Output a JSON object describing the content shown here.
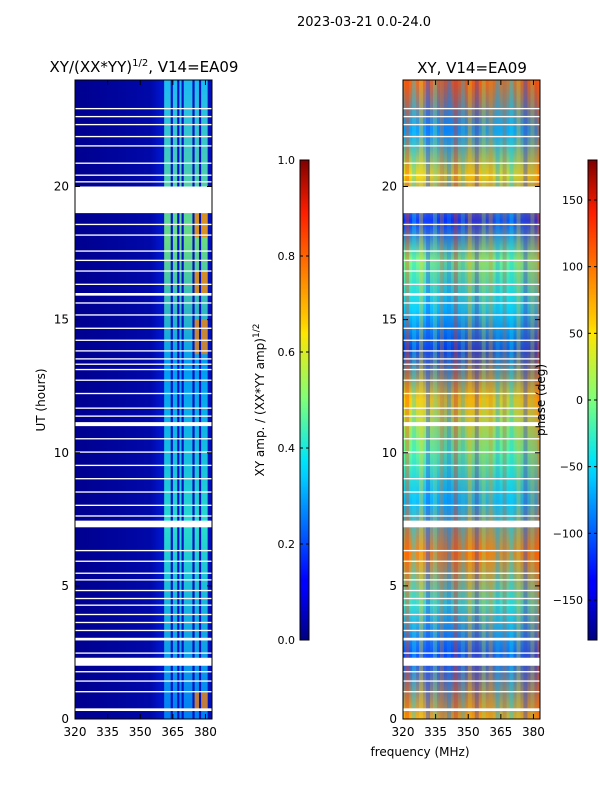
{
  "figure_title": "2023-03-21 0.0-24.0",
  "chart_data": [
    {
      "type": "heatmap",
      "title": "XY/(XX*YY)$^{1/2}$, V14=EA09",
      "title_main": "XY/(XX*YY)",
      "title_sup": "1/2",
      "title_tail": ", V14=EA09",
      "xlabel": "",
      "ylabel": "UT (hours)",
      "xlim": [
        320,
        383
      ],
      "ylim": [
        0,
        24
      ],
      "xticks": [
        "320",
        "335",
        "350",
        "365",
        "380"
      ],
      "xtick_values": [
        320,
        335,
        350,
        365,
        380
      ],
      "yticks": [
        "0",
        "5",
        "10",
        "15",
        "20"
      ],
      "ytick_values": [
        0,
        5,
        10,
        15,
        20
      ],
      "colorbar": {
        "label": "XY amp. / (XX*YY amp)$^{1/2}$",
        "label_main": "XY amp. / (XX*YY amp)",
        "label_sup": "1/2",
        "range": [
          0.0,
          1.0
        ],
        "ticks": [
          "0.0",
          "0.2",
          "0.4",
          "0.6",
          "0.8",
          "1.0"
        ],
        "tick_values": [
          0.0,
          0.2,
          0.4,
          0.6,
          0.8,
          1.0
        ]
      }
    },
    {
      "type": "heatmap",
      "title": "XY, V14=EA09",
      "xlabel": "frequency (MHz)",
      "ylabel": "",
      "xlim": [
        320,
        383
      ],
      "ylim": [
        0,
        24
      ],
      "xticks": [
        "320",
        "335",
        "350",
        "365",
        "380"
      ],
      "xtick_values": [
        320,
        335,
        350,
        365,
        380
      ],
      "yticks": [
        "0",
        "5",
        "10",
        "15",
        "20"
      ],
      "ytick_values": [
        0,
        5,
        10,
        15,
        20
      ],
      "colorbar": {
        "label": "phase (deg)",
        "range": [
          -180,
          180
        ],
        "ticks": [
          "−150",
          "−100",
          "−50",
          "0",
          "50",
          "100",
          "150"
        ],
        "tick_values": [
          -150,
          -100,
          -50,
          0,
          50,
          100,
          150
        ]
      }
    }
  ],
  "flagged_hours": [
    [
      19.0,
      20.0
    ],
    [
      0.3,
      0.4
    ],
    [
      1.0,
      1.05
    ],
    [
      1.4,
      1.45
    ],
    [
      1.75,
      1.8
    ],
    [
      2.0,
      2.3
    ],
    [
      2.45,
      2.5
    ],
    [
      2.95,
      3.05
    ],
    [
      3.3,
      3.35
    ],
    [
      3.6,
      3.65
    ],
    [
      3.9,
      3.95
    ],
    [
      4.25,
      4.3
    ],
    [
      4.5,
      4.55
    ],
    [
      4.8,
      4.85
    ],
    [
      5.2,
      5.25
    ],
    [
      5.45,
      5.5
    ],
    [
      5.9,
      5.95
    ],
    [
      6.3,
      6.35
    ],
    [
      7.2,
      7.45
    ],
    [
      7.6,
      7.65
    ],
    [
      8.0,
      8.05
    ],
    [
      8.5,
      8.55
    ],
    [
      9.0,
      9.05
    ],
    [
      9.5,
      9.55
    ],
    [
      10.0,
      10.05
    ],
    [
      10.5,
      10.55
    ],
    [
      11.0,
      11.15
    ],
    [
      11.35,
      11.4
    ],
    [
      11.65,
      11.7
    ],
    [
      12.2,
      12.25
    ],
    [
      12.7,
      12.75
    ],
    [
      13.1,
      13.15
    ],
    [
      13.3,
      13.35
    ],
    [
      13.5,
      13.55
    ],
    [
      13.8,
      13.85
    ],
    [
      14.2,
      14.25
    ],
    [
      14.65,
      14.7
    ],
    [
      15.15,
      15.2
    ],
    [
      15.6,
      15.65
    ],
    [
      15.9,
      16.0
    ],
    [
      16.3,
      16.35
    ],
    [
      16.8,
      16.85
    ],
    [
      17.2,
      17.25
    ],
    [
      17.55,
      17.6
    ],
    [
      18.15,
      18.2
    ],
    [
      18.55,
      18.6
    ],
    [
      20.15,
      20.2
    ],
    [
      20.4,
      20.45
    ],
    [
      20.85,
      20.9
    ],
    [
      21.5,
      21.55
    ],
    [
      21.85,
      21.9
    ],
    [
      22.3,
      22.35
    ],
    [
      22.6,
      22.65
    ],
    [
      22.9,
      22.95
    ]
  ],
  "bright_bands_mhz": [
    [
      361,
      364
    ],
    [
      365,
      367
    ],
    [
      368,
      369
    ],
    [
      370,
      374
    ],
    [
      375,
      377
    ],
    [
      378,
      381
    ]
  ]
}
